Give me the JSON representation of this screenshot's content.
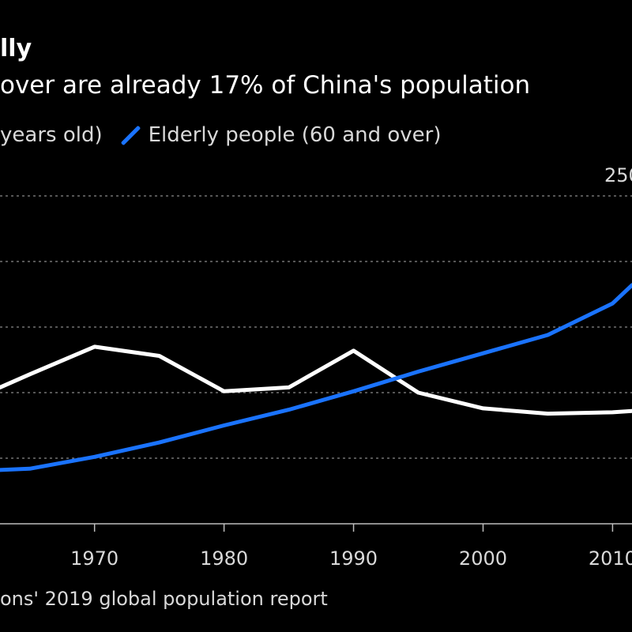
{
  "header": {
    "title": "lly",
    "subtitle": " over are already 17% of China's population"
  },
  "legend": {
    "items": [
      {
        "label": "years old)",
        "color": "#ffffff"
      },
      {
        "label": "Elderly people (60 and over)",
        "color": "#1a73ff"
      }
    ]
  },
  "footer": {
    "source": "ons' 2019 global population report"
  },
  "chart_data": {
    "type": "line",
    "x_ticks": [
      "1970",
      "1980",
      "1990",
      "2000",
      "2010"
    ],
    "y_tick_labels": [
      "250"
    ],
    "xlim": [
      1962.7,
      2011.5
    ],
    "ylim": [
      0,
      250
    ],
    "grid": true,
    "legend_position": "top",
    "series": [
      {
        "name": "years old)",
        "color": "#ffffff",
        "x": [
          1962.7,
          1965,
          1970,
          1975,
          1980,
          1985,
          1990,
          1995,
          2000,
          2005,
          2010,
          2011.5
        ],
        "y": [
          104,
          114,
          135,
          128,
          101,
          104,
          132,
          100,
          88,
          84,
          85,
          86
        ]
      },
      {
        "name": "Elderly people (60 and over)",
        "color": "#1a73ff",
        "x": [
          1962.7,
          1965,
          1970,
          1975,
          1980,
          1985,
          1990,
          1995,
          2000,
          2005,
          2010,
          2011.5
        ],
        "y": [
          41,
          42,
          51,
          62,
          75,
          87,
          101,
          116,
          130,
          144,
          168,
          182
        ]
      }
    ]
  }
}
